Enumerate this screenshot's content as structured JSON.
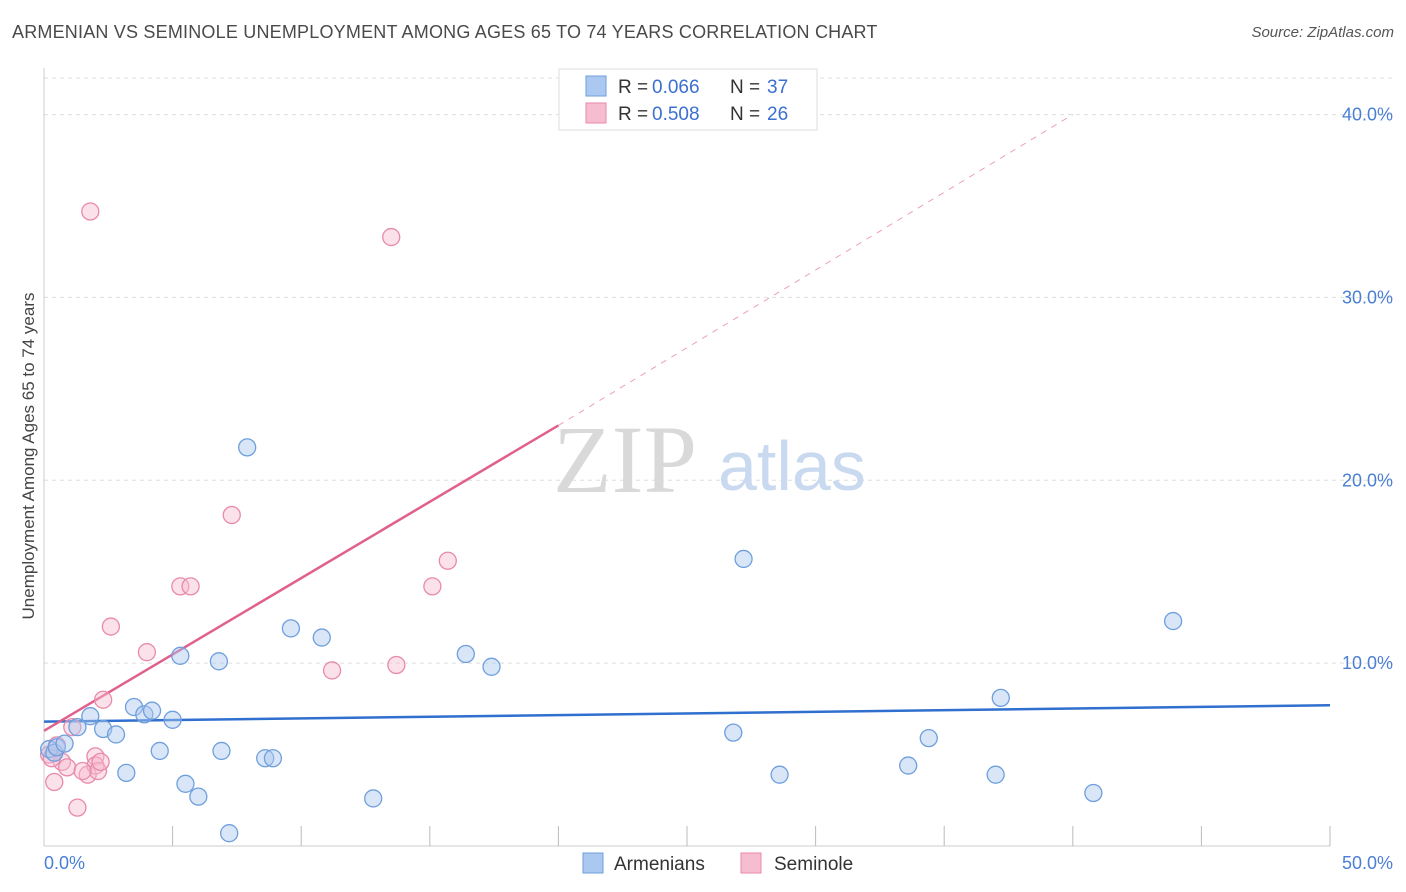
{
  "title": "ARMENIAN VS SEMINOLE UNEMPLOYMENT AMONG AGES 65 TO 74 YEARS CORRELATION CHART",
  "source": "Source: ZipAtlas.com",
  "watermark": {
    "zip": "ZIP",
    "atlas": "atlas"
  },
  "legend": {
    "rows": [
      {
        "r_label": "R =",
        "r_value": "0.066",
        "n_label": "N =",
        "n_value": "37"
      },
      {
        "r_label": "R =",
        "r_value": "0.508",
        "n_label": "N =",
        "n_value": "26"
      }
    ]
  },
  "bottom_legend": {
    "armenians": "Armenians",
    "seminole": "Seminole"
  },
  "colors": {
    "armenian_fill": "#aac8f0",
    "armenian_stroke": "#6f9fdd",
    "armenian_line": "#2f6fce",
    "seminole_fill": "#f6bcd0",
    "seminole_stroke": "#e88aab",
    "seminole_line": "#e0608e",
    "grid": "#dddddd",
    "axis_text": "#4a7fd4"
  },
  "chart_data": {
    "type": "scatter",
    "title": "ARMENIAN VS SEMINOLE UNEMPLOYMENT AMONG AGES 65 TO 74 YEARS CORRELATION CHART",
    "xlabel": "",
    "ylabel": "Unemployment Among Ages 65 to 74 years",
    "xlim": [
      0,
      50
    ],
    "ylim": [
      0,
      42
    ],
    "x_tick_labels": [
      "0.0%",
      "50.0%"
    ],
    "y_ticks": [
      10,
      20,
      30,
      40
    ],
    "y_tick_labels": [
      "10.0%",
      "20.0%",
      "30.0%",
      "40.0%"
    ],
    "series": [
      {
        "name": "Armenians",
        "R": 0.066,
        "N": 37,
        "trend": {
          "x0": 0,
          "y0": 6.8,
          "x1": 50,
          "y1": 7.7
        },
        "points": [
          [
            0.2,
            5.3
          ],
          [
            0.4,
            5.1
          ],
          [
            0.5,
            5.4
          ],
          [
            0.8,
            5.6
          ],
          [
            1.3,
            6.5
          ],
          [
            1.8,
            7.1
          ],
          [
            2.3,
            6.4
          ],
          [
            2.8,
            6.1
          ],
          [
            3.2,
            4.0
          ],
          [
            3.5,
            7.6
          ],
          [
            3.9,
            7.2
          ],
          [
            4.2,
            7.4
          ],
          [
            4.5,
            5.2
          ],
          [
            5.0,
            6.9
          ],
          [
            5.3,
            10.4
          ],
          [
            5.5,
            3.4
          ],
          [
            6.0,
            2.7
          ],
          [
            6.8,
            10.1
          ],
          [
            6.9,
            5.2
          ],
          [
            7.2,
            0.7
          ],
          [
            7.9,
            21.8
          ],
          [
            8.6,
            4.8
          ],
          [
            8.9,
            4.8
          ],
          [
            9.6,
            11.9
          ],
          [
            10.8,
            11.4
          ],
          [
            12.8,
            2.6
          ],
          [
            16.4,
            10.5
          ],
          [
            17.4,
            9.8
          ],
          [
            26.8,
            6.2
          ],
          [
            27.2,
            15.7
          ],
          [
            28.6,
            3.9
          ],
          [
            33.6,
            4.4
          ],
          [
            34.4,
            5.9
          ],
          [
            37.0,
            3.9
          ],
          [
            37.2,
            8.1
          ],
          [
            40.8,
            2.9
          ],
          [
            43.9,
            12.3
          ]
        ]
      },
      {
        "name": "Seminole",
        "R": 0.508,
        "N": 26,
        "trend": {
          "x0": 0,
          "y0": 6.3,
          "x1": 20,
          "y1": 23.0,
          "dash_to_x": 40,
          "dash_to_y": 40.0
        },
        "points": [
          [
            0.2,
            5.0
          ],
          [
            0.4,
            3.5
          ],
          [
            0.5,
            5.5
          ],
          [
            0.7,
            4.6
          ],
          [
            0.9,
            4.3
          ],
          [
            1.1,
            6.5
          ],
          [
            1.3,
            2.1
          ],
          [
            1.7,
            3.9
          ],
          [
            2.0,
            4.9
          ],
          [
            2.0,
            4.4
          ],
          [
            2.1,
            4.1
          ],
          [
            2.3,
            8.0
          ],
          [
            2.6,
            12.0
          ],
          [
            1.8,
            34.7
          ],
          [
            4.0,
            10.6
          ],
          [
            5.3,
            14.2
          ],
          [
            5.7,
            14.2
          ],
          [
            7.3,
            18.1
          ],
          [
            11.2,
            9.6
          ],
          [
            13.5,
            33.3
          ],
          [
            13.7,
            9.9
          ],
          [
            15.1,
            14.2
          ],
          [
            15.7,
            15.6
          ],
          [
            2.2,
            4.6
          ],
          [
            0.3,
            4.8
          ],
          [
            1.5,
            4.1
          ]
        ]
      }
    ]
  }
}
